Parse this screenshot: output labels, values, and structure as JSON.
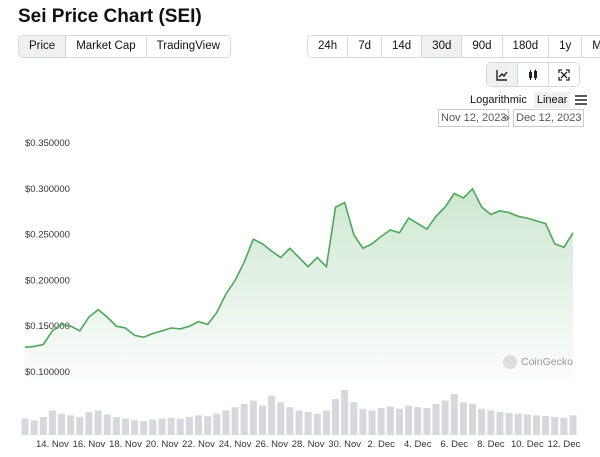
{
  "header": {
    "title": "Sei Price Chart (SEI)"
  },
  "tabs": [
    "Price",
    "Market Cap",
    "TradingView"
  ],
  "ranges": [
    "24h",
    "7d",
    "14d",
    "30d",
    "90d",
    "180d",
    "1y",
    "Max"
  ],
  "scale_options": [
    "Logarithmic",
    "Linear"
  ],
  "date_range": {
    "from": "Nov 12, 2023",
    "to": "Dec 12, 2023"
  },
  "watermark": "CoinGecko",
  "chart_data": {
    "type": "line",
    "categories": [
      null,
      null,
      null,
      "14. Nov",
      null,
      null,
      null,
      "16. Nov",
      null,
      null,
      null,
      "18. Nov",
      null,
      null,
      null,
      "20. Nov",
      null,
      null,
      null,
      "22. Nov",
      null,
      null,
      null,
      "24. Nov",
      null,
      null,
      null,
      "26. Nov",
      null,
      null,
      null,
      "28. Nov",
      null,
      null,
      null,
      "30. Nov",
      null,
      null,
      null,
      "2. Dec",
      null,
      null,
      null,
      "4. Dec",
      null,
      null,
      null,
      "6. Dec",
      null,
      null,
      null,
      "8. Dec",
      null,
      null,
      null,
      "10. Dec",
      null,
      null,
      null,
      "12. Dec",
      null
    ],
    "values": [
      0.127,
      0.128,
      0.13,
      0.145,
      0.152,
      0.15,
      0.145,
      0.16,
      0.168,
      0.16,
      0.15,
      0.148,
      0.14,
      0.138,
      0.142,
      0.145,
      0.148,
      0.147,
      0.15,
      0.155,
      0.152,
      0.165,
      0.185,
      0.2,
      0.22,
      0.245,
      0.24,
      0.232,
      0.225,
      0.235,
      0.225,
      0.215,
      0.225,
      0.215,
      0.28,
      0.285,
      0.25,
      0.235,
      0.24,
      0.248,
      0.255,
      0.252,
      0.268,
      0.262,
      0.256,
      0.27,
      0.28,
      0.295,
      0.29,
      0.3,
      0.28,
      0.272,
      0.276,
      0.274,
      0.27,
      0.268,
      0.265,
      0.262,
      0.24,
      0.236,
      0.252
    ],
    "volumes": [
      20,
      18,
      22,
      30,
      26,
      24,
      22,
      28,
      30,
      25,
      22,
      20,
      18,
      17,
      19,
      20,
      21,
      20,
      22,
      24,
      23,
      26,
      30,
      34,
      38,
      42,
      36,
      48,
      40,
      34,
      30,
      28,
      26,
      30,
      44,
      55,
      40,
      32,
      30,
      33,
      35,
      32,
      36,
      34,
      33,
      38,
      42,
      50,
      40,
      38,
      32,
      30,
      28,
      27,
      26,
      25,
      24,
      23,
      22,
      21,
      24
    ],
    "color": "#4da85a",
    "volume_color": "#d5d8dc",
    "ylim": [
      0.1,
      0.35
    ],
    "yticks": [
      {
        "value": 0.35,
        "label": "$0.350000"
      },
      {
        "value": 0.3,
        "label": "$0.300000"
      },
      {
        "value": 0.25,
        "label": "$0.250000"
      },
      {
        "value": 0.2,
        "label": "$0.200000"
      },
      {
        "value": 0.15,
        "label": "$0.150000"
      },
      {
        "value": 0.1,
        "label": "$0.100000"
      }
    ]
  }
}
